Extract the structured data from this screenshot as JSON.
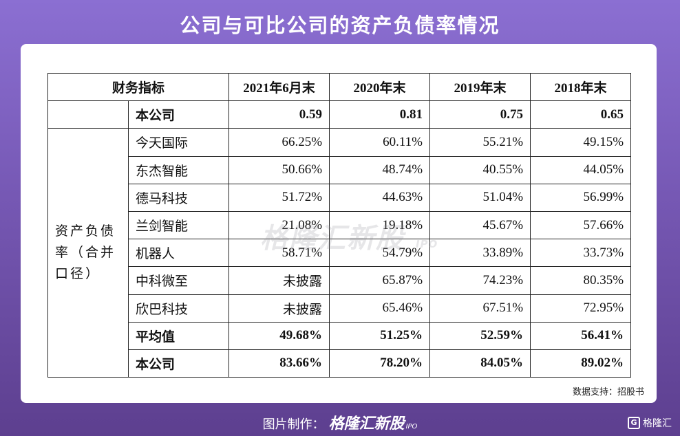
{
  "title": "公司与可比公司的资产负债率情况",
  "table": {
    "header": [
      "财务指标",
      "2021年6月末",
      "2020年末",
      "2019年末",
      "2018年末"
    ],
    "current_ratio_row": {
      "label": "本公司",
      "values": [
        "0.59",
        "0.81",
        "0.75",
        "0.65"
      ]
    },
    "group_label": "资产负债率（合并口径）",
    "companies": [
      {
        "name": "今天国际",
        "values": [
          "66.25%",
          "60.11%",
          "55.21%",
          "49.15%"
        ]
      },
      {
        "name": "东杰智能",
        "values": [
          "50.66%",
          "48.74%",
          "40.55%",
          "44.05%"
        ]
      },
      {
        "name": "德马科技",
        "values": [
          "51.72%",
          "44.63%",
          "51.04%",
          "56.99%"
        ]
      },
      {
        "name": "兰剑智能",
        "values": [
          "21.08%",
          "19.18%",
          "45.67%",
          "57.66%"
        ]
      },
      {
        "name": "机器人",
        "values": [
          "58.71%",
          "54.79%",
          "33.89%",
          "33.73%"
        ]
      },
      {
        "name": "中科微至",
        "values": [
          "未披露",
          "65.87%",
          "74.23%",
          "80.35%"
        ]
      },
      {
        "name": "欣巴科技",
        "values": [
          "未披露",
          "65.46%",
          "67.51%",
          "72.95%"
        ]
      }
    ],
    "average": {
      "label": "平均值",
      "values": [
        "49.68%",
        "51.25%",
        "52.59%",
        "56.41%"
      ]
    },
    "company": {
      "label": "本公司",
      "values": [
        "83.66%",
        "78.20%",
        "84.05%",
        "89.02%"
      ]
    }
  },
  "watermark": {
    "brand": "格隆汇新股",
    "suffix": "IPO"
  },
  "source": "数据支持：招股书",
  "footer": {
    "prefix": "图片制作：",
    "brand": "格隆汇新股",
    "suffix": "IPO"
  },
  "corner_logo": {
    "mark": "G",
    "text": "格隆汇"
  }
}
